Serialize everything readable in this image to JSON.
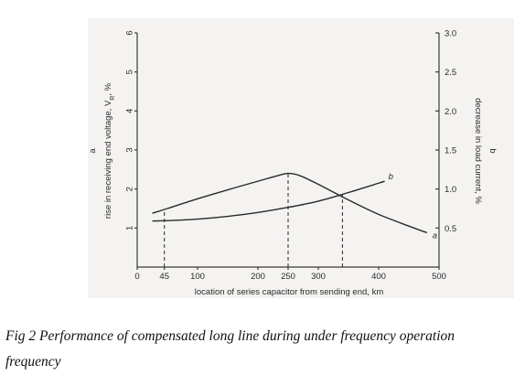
{
  "chart_data": {
    "type": "line",
    "xlabel": "location of series capacitor from sending end, km",
    "x_ticks": [
      {
        "value": 0,
        "label": "0"
      },
      {
        "value": 45,
        "label": "45"
      },
      {
        "value": 100,
        "label": "100"
      },
      {
        "value": 200,
        "label": "200"
      },
      {
        "value": 250,
        "label": "250"
      },
      {
        "value": 300,
        "label": "300"
      },
      {
        "value": 400,
        "label": "400"
      },
      {
        "value": 500,
        "label": "500"
      }
    ],
    "xlim": [
      0,
      500
    ],
    "y_left": {
      "label_letter": "a",
      "label": "rise in receiving end voltage, V",
      "label_sub": "R",
      "label_suffix": ", %",
      "ylim": [
        0,
        6
      ],
      "ticks": [
        "1",
        "2",
        "3",
        "4",
        "5",
        "6"
      ]
    },
    "y_right": {
      "label_letter": "b",
      "label": "decrease in load current, %",
      "ylim": [
        0,
        3.0
      ],
      "ticks": [
        "0.5",
        "1.0",
        "1.5",
        "2.0",
        "2.5",
        "3.0"
      ]
    },
    "series": [
      {
        "name": "a",
        "axis": "left",
        "x": [
          25,
          50,
          100,
          150,
          200,
          230,
          250,
          270,
          300,
          350,
          400,
          450,
          480
        ],
        "y": [
          1.38,
          1.5,
          1.75,
          1.98,
          2.2,
          2.33,
          2.4,
          2.34,
          2.12,
          1.72,
          1.35,
          1.05,
          0.88
        ]
      },
      {
        "name": "b",
        "axis": "right",
        "x": [
          25,
          50,
          100,
          150,
          200,
          250,
          300,
          350,
          400,
          410
        ],
        "y": [
          0.59,
          0.595,
          0.615,
          0.65,
          0.7,
          0.765,
          0.845,
          0.955,
          1.075,
          1.1
        ]
      }
    ],
    "guides_x": [
      45,
      250,
      340
    ],
    "grid": false
  },
  "caption": {
    "line1": "Fig 2 Performance of compensated long line during under frequency operation",
    "line2": "frequency"
  }
}
